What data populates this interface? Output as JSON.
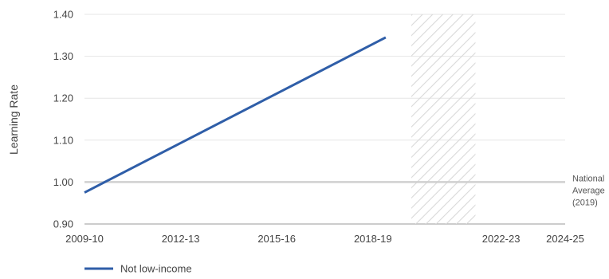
{
  "chart_data": {
    "type": "line",
    "title": "",
    "xlabel": "",
    "ylabel": "Learning Rate",
    "ylim": [
      0.9,
      1.4
    ],
    "xlim": [
      2009,
      2024
    ],
    "x_ticks": [
      {
        "value": 2009,
        "label": "2009-10"
      },
      {
        "value": 2012,
        "label": "2012-13"
      },
      {
        "value": 2015,
        "label": "2015-16"
      },
      {
        "value": 2018,
        "label": "2018-19"
      },
      {
        "value": 2022,
        "label": "2022-23"
      },
      {
        "value": 2024,
        "label": "2024-25"
      }
    ],
    "y_ticks": [
      {
        "value": 0.9,
        "label": "0.90"
      },
      {
        "value": 1.0,
        "label": "1.00"
      },
      {
        "value": 1.1,
        "label": "1.10"
      },
      {
        "value": 1.2,
        "label": "1.20"
      },
      {
        "value": 1.3,
        "label": "1.30"
      },
      {
        "value": 1.4,
        "label": "1.40"
      }
    ],
    "grid": true,
    "series": [
      {
        "name": "Not low-income",
        "color": "#2f5ea8",
        "x": [
          2009,
          2018.4
        ],
        "y": [
          0.975,
          1.345
        ]
      }
    ],
    "reference_line": {
      "y": 1.0,
      "label_lines": [
        "National",
        "Average",
        "(2019)"
      ],
      "color": "#d0d0d0"
    },
    "hatched_region": {
      "x_start": 2019.2,
      "x_end": 2021.2,
      "color": "#d9d9d9"
    },
    "legend": {
      "position": "bottom-left"
    }
  }
}
